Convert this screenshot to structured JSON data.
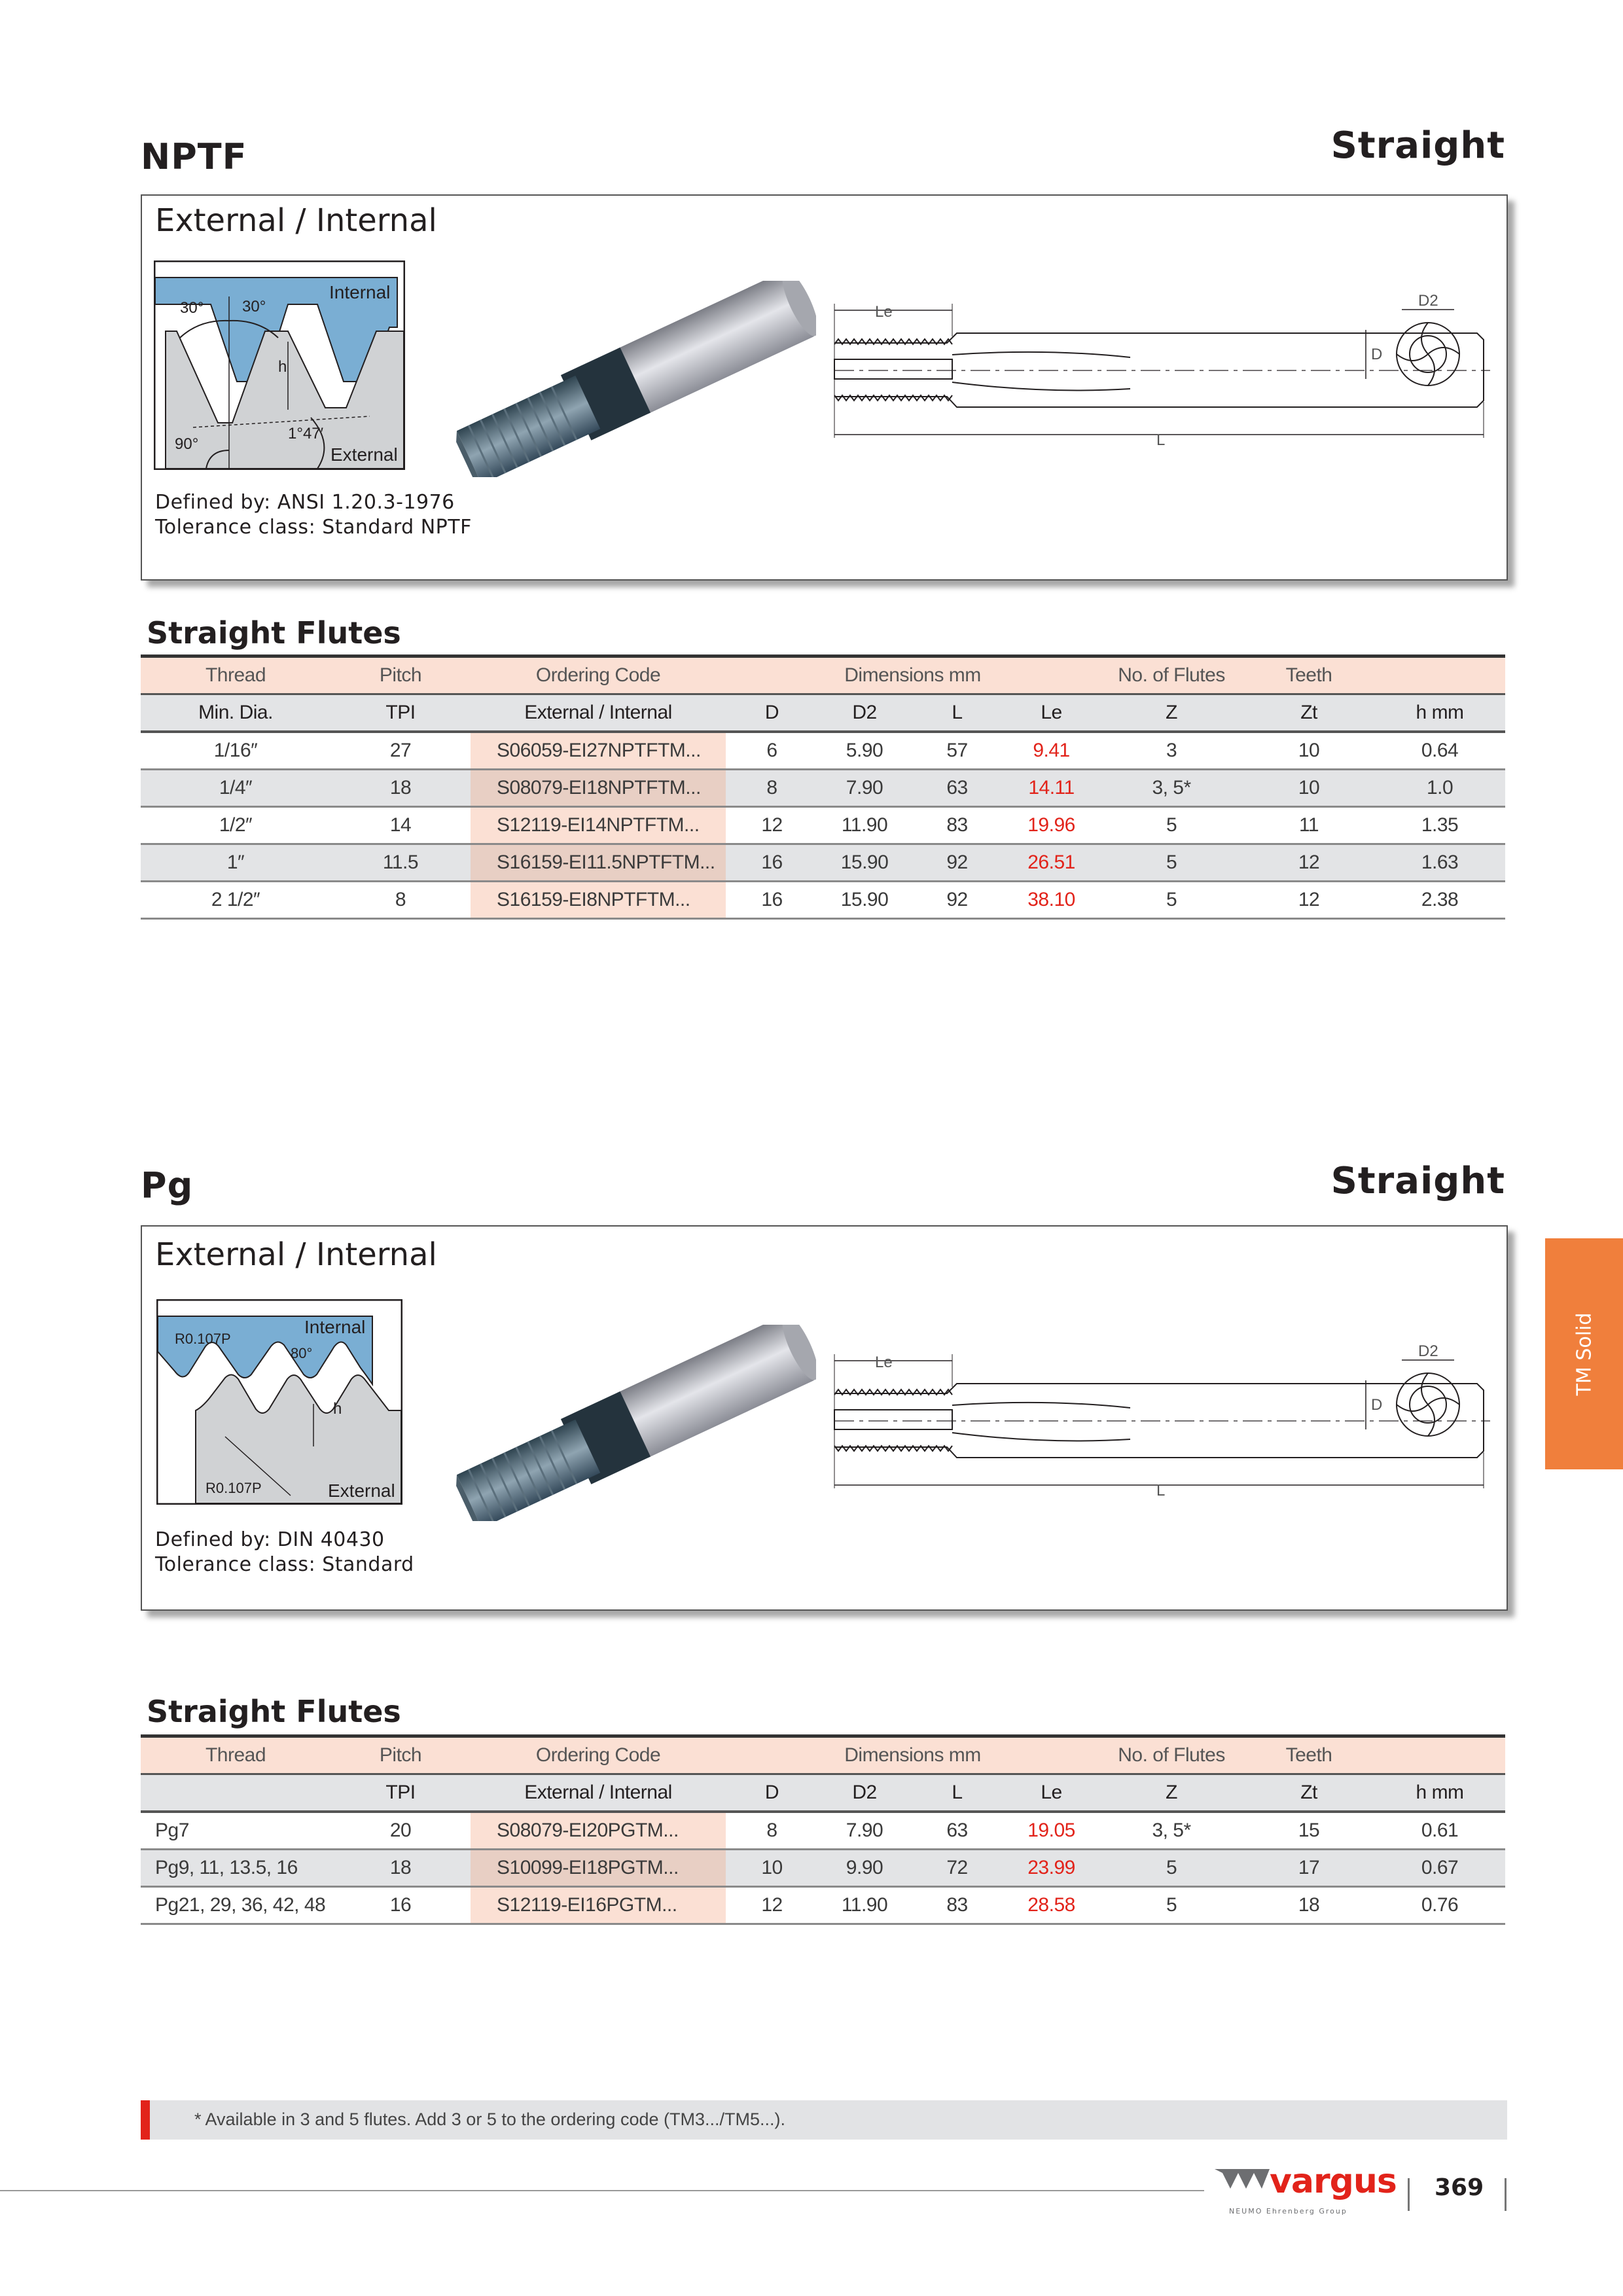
{
  "sections": [
    {
      "title": "NPTF",
      "style_label": "Straight",
      "box_title": "External / Internal",
      "diagram_labels": {
        "angle_left": "30°",
        "angle_right": "30°",
        "internal": "Internal",
        "h": "h",
        "taper": "1°47′",
        "right_angle": "90°",
        "external": "External"
      },
      "defined_by": "Defined by: ANSI 1.20.3-1976",
      "tolerance": "Tolerance class: Standard NPTF",
      "drawing_labels": {
        "le": "Le",
        "d2": "D2",
        "d": "D",
        "l": "L"
      },
      "table_title": "Straight Flutes",
      "header1": [
        "Thread",
        "Pitch",
        "Ordering Code",
        "Dimensions mm",
        "No. of Flutes",
        "Teeth",
        ""
      ],
      "header2": [
        "Min. Dia.",
        "TPI",
        "External / Internal",
        "D",
        "D2",
        "L",
        "Le",
        "Z",
        "Zt",
        "h mm"
      ],
      "rows": [
        [
          "1/16″",
          "27",
          "S06059-EI27NPTFTM...",
          "6",
          "5.90",
          "57",
          "9.41",
          "3",
          "10",
          "0.64"
        ],
        [
          "1/4″",
          "18",
          "S08079-EI18NPTFTM...",
          "8",
          "7.90",
          "63",
          "14.11",
          "3, 5*",
          "10",
          "1.0"
        ],
        [
          "1/2″",
          "14",
          "S12119-EI14NPTFTM...",
          "12",
          "11.90",
          "83",
          "19.96",
          "5",
          "11",
          "1.35"
        ],
        [
          "1″",
          "11.5",
          "S16159-EI11.5NPTFTM...",
          "16",
          "15.90",
          "92",
          "26.51",
          "5",
          "12",
          "1.63"
        ],
        [
          "2 1/2″",
          "8",
          "S16159-EI8NPTFTM...",
          "16",
          "15.90",
          "92",
          "38.10",
          "5",
          "12",
          "2.38"
        ]
      ]
    },
    {
      "title": "Pg",
      "style_label": "Straight",
      "box_title": "External / Internal",
      "diagram_labels": {
        "radius_top": "R0.107P",
        "internal": "Internal",
        "angle": "80°",
        "h": "h",
        "radius_bottom": "R0.107P",
        "external": "External"
      },
      "defined_by": "Defined by: DIN 40430",
      "tolerance": "Tolerance class: Standard",
      "drawing_labels": {
        "le": "Le",
        "d2": "D2",
        "d": "D",
        "l": "L"
      },
      "table_title": "Straight Flutes",
      "header1": [
        "Thread",
        "Pitch",
        "Ordering Code",
        "Dimensions mm",
        "No. of Flutes",
        "Teeth",
        ""
      ],
      "header2": [
        "",
        "TPI",
        "External / Internal",
        "D",
        "D2",
        "L",
        "Le",
        "Z",
        "Zt",
        "h mm"
      ],
      "rows": [
        [
          "Pg7",
          "20",
          "S08079-EI20PGTM...",
          "8",
          "7.90",
          "63",
          "19.05",
          "3, 5*",
          "15",
          "0.61"
        ],
        [
          "Pg9, 11, 13.5, 16",
          "18",
          "S10099-EI18PGTM...",
          "10",
          "9.90",
          "72",
          "23.99",
          "5",
          "17",
          "0.67"
        ],
        [
          "Pg21, 29, 36, 42, 48",
          "16",
          "S12119-EI16PGTM...",
          "12",
          "11.90",
          "83",
          "28.58",
          "5",
          "18",
          "0.76"
        ]
      ]
    }
  ],
  "side_tab": {
    "label": "TM Solid",
    "color": "#f07f3c"
  },
  "footnote": "*  Available in 3 and 5 flutes. Add 3 or 5 to the ordering code (TM3.../TM5...).",
  "footer": {
    "logo_text": "vargus",
    "logo_subtext": "NEUMO Ehrenberg Group",
    "page_number": "369"
  },
  "colors": {
    "accent_red": "#e2231a",
    "peach": "#fbe0d4",
    "gray_row": "#e3e4e6",
    "thread_blue": "#7aaed3"
  }
}
